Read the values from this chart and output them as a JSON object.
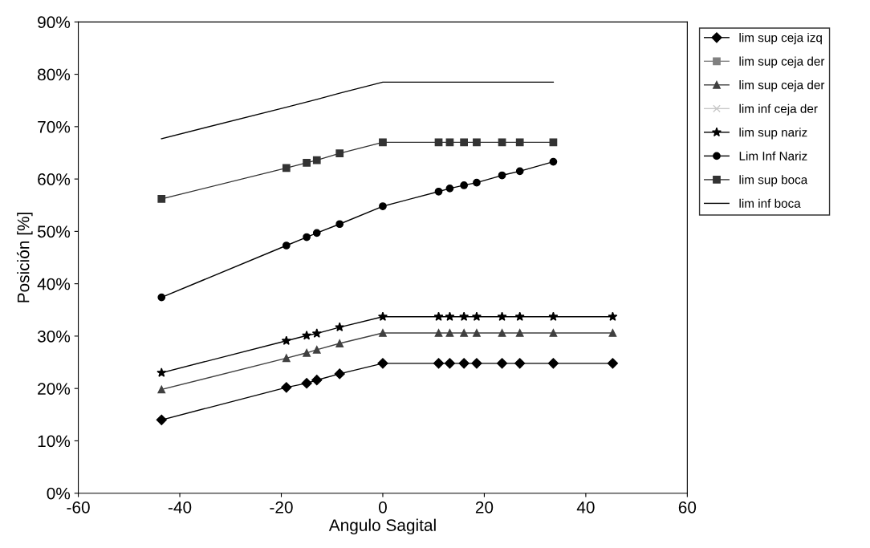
{
  "chart_data": {
    "type": "line",
    "xlabel": "Angulo Sagital",
    "ylabel": "Posición [%]",
    "x": [
      -43.6,
      -19,
      -15,
      -13,
      -8.5,
      0,
      11,
      13.2,
      16,
      18.5,
      23.5,
      27,
      33.6,
      45.3
    ],
    "xlim": [
      -60,
      60
    ],
    "xticks": [
      -60,
      -40,
      -20,
      0,
      20,
      40,
      60
    ],
    "ylim": [
      0,
      90
    ],
    "yticks": [
      {
        "value": 0,
        "label": "0%"
      },
      {
        "value": 10,
        "label": "10%"
      },
      {
        "value": 20,
        "label": "20%"
      },
      {
        "value": 30,
        "label": "30%"
      },
      {
        "value": 40,
        "label": "40%"
      },
      {
        "value": 50,
        "label": "50%"
      },
      {
        "value": 60,
        "label": "60%"
      },
      {
        "value": 70,
        "label": "70%"
      },
      {
        "value": 80,
        "label": "80%"
      },
      {
        "value": 90,
        "label": "90%"
      }
    ],
    "grid": false,
    "legend": "top right",
    "series": [
      {
        "name": "lim sup ceja izq",
        "color": "#000000",
        "marker": "diamond",
        "values": [
          14,
          20.2,
          21,
          21.6,
          22.8,
          24.8,
          24.8,
          24.8,
          24.8,
          24.8,
          24.8,
          24.8,
          24.8,
          24.8
        ]
      },
      {
        "name": "lim sup ceja der",
        "color": "#808080",
        "marker": "square",
        "values": [
          null,
          null,
          null,
          null,
          null,
          null,
          null,
          null,
          null,
          null,
          null,
          null,
          null,
          null
        ]
      },
      {
        "name": "lim sup ceja der",
        "color": "#404040",
        "marker": "triangle",
        "values": [
          19.8,
          25.8,
          26.8,
          27.4,
          28.6,
          30.6,
          30.6,
          30.6,
          30.6,
          30.6,
          30.6,
          30.6,
          30.6,
          30.6
        ]
      },
      {
        "name": "lim inf ceja der",
        "color": "#c8c8c8",
        "marker": "cross",
        "values": [
          null,
          null,
          null,
          null,
          null,
          null,
          null,
          null,
          null,
          null,
          null,
          null,
          null,
          null
        ]
      },
      {
        "name": "lim sup nariz",
        "color": "#000000",
        "marker": "star",
        "values": [
          23,
          29.1,
          30.1,
          30.5,
          31.7,
          33.7,
          33.7,
          33.7,
          33.7,
          33.7,
          33.7,
          33.7,
          33.7,
          33.7
        ]
      },
      {
        "name": "Lim Inf Nariz",
        "color": "#000000",
        "marker": "circle",
        "values": [
          37.4,
          47.3,
          48.9,
          49.7,
          51.4,
          54.8,
          57.6,
          58.2,
          58.8,
          59.3,
          60.7,
          61.5,
          63.3,
          null
        ]
      },
      {
        "name": "lim sup boca",
        "color": "#333333",
        "marker": "square",
        "values": [
          56.2,
          62.1,
          63.1,
          63.6,
          64.9,
          67,
          67,
          67,
          67,
          67,
          67,
          67,
          67,
          null
        ]
      },
      {
        "name": "lim inf boca",
        "color": "#000000",
        "marker": "none",
        "values": [
          67.7,
          73.7,
          74.7,
          75.2,
          76.4,
          78.5,
          78.5,
          78.5,
          78.5,
          78.5,
          78.5,
          78.5,
          78.5,
          null
        ]
      }
    ]
  }
}
